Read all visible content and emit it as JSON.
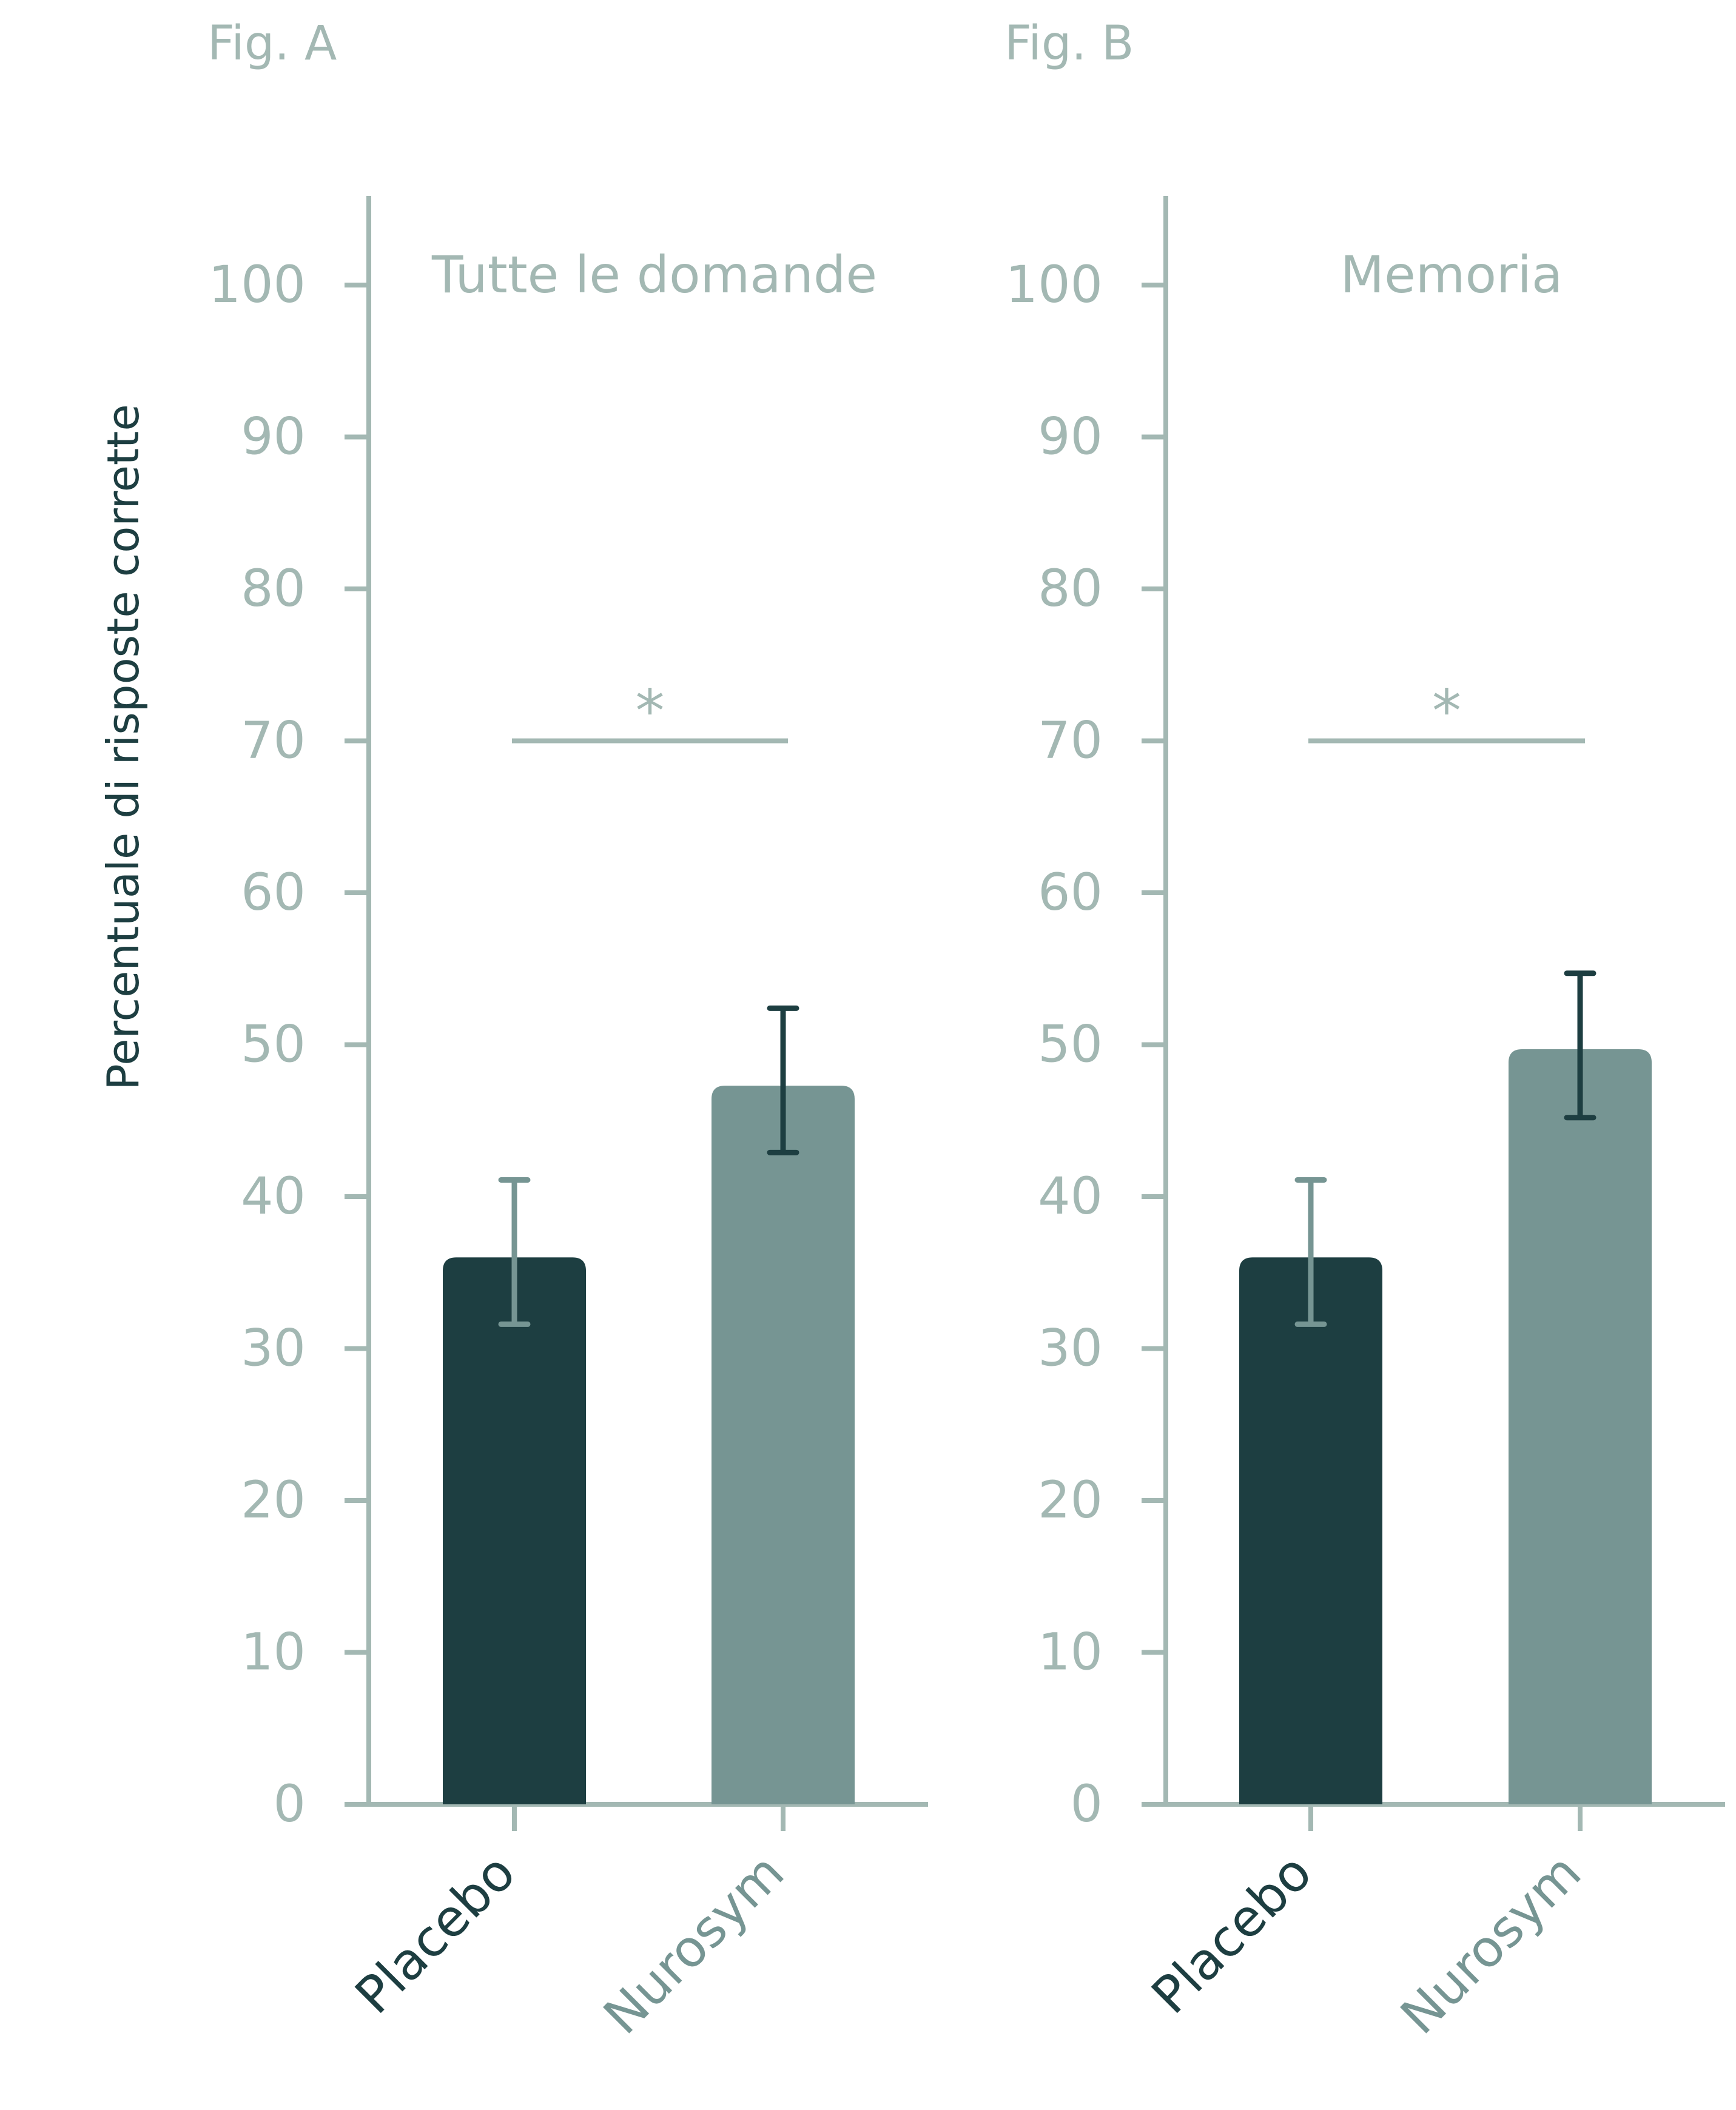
{
  "colors": {
    "axis": "#A3B8B3",
    "tick_text": "#A3B8B3",
    "placebo_bar": "#1D3E41",
    "nurosym_bar": "#769593",
    "placebo_err": "#769593",
    "nurosym_err": "#1D3E41",
    "sig_line": "#A3B8B3",
    "ylabel": "#1D3E41",
    "placebo_label": "#1D3E41",
    "nurosym_label": "#769593"
  },
  "ylabel": "Percentuale di risposte corrette",
  "chart_data": [
    {
      "type": "bar",
      "figure_label": "Fig. A",
      "title": "Tutte le domande",
      "categories": [
        "Placebo",
        "Nurosym"
      ],
      "values": [
        36,
        47.3
      ],
      "error_low": [
        31.6,
        42.9
      ],
      "error_high": [
        41.1,
        52.4
      ],
      "ylim": [
        0,
        100
      ],
      "yticks": [
        0,
        10,
        20,
        30,
        40,
        50,
        60,
        70,
        80,
        90,
        100
      ],
      "significance": {
        "symbol": "*",
        "level": 70
      }
    },
    {
      "type": "bar",
      "figure_label": "Fig. B",
      "title": "Memoria",
      "categories": [
        "Placebo",
        "Nurosym"
      ],
      "values": [
        36,
        49.7
      ],
      "error_low": [
        31.6,
        45.2
      ],
      "error_high": [
        41.1,
        54.7
      ],
      "ylim": [
        0,
        100
      ],
      "yticks": [
        0,
        10,
        20,
        30,
        40,
        50,
        60,
        70,
        80,
        90,
        100
      ],
      "significance": {
        "symbol": "*",
        "level": 70
      }
    }
  ]
}
